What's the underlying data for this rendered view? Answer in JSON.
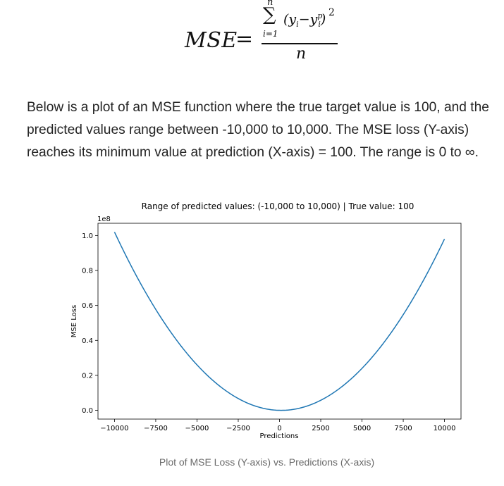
{
  "formula": {
    "lhs": "MSE",
    "equals": "=",
    "sum_upper": "n",
    "sum_symbol": "∑",
    "sum_lower": "i=1",
    "term": "(y",
    "term_sub_i": "i",
    "term_minus": "−y",
    "term_sup_p": "p",
    "term_sub_i2": "i",
    "term_close": ")",
    "square": "2",
    "denominator": "n"
  },
  "paragraph": "Below is a plot of an MSE function where the true target value is 100, and the predicted values range between -10,000 to 10,000. The MSE loss (Y-axis) reaches its minimum value at prediction (X-axis) = 100. The range is 0 to ∞.",
  "caption": "Plot of MSE Loss (Y-axis) vs. Predictions (X-axis)",
  "colors": {
    "line": "#1f77b4",
    "axis": "#000000",
    "text": "#242424",
    "caption": "#6b6b6b"
  },
  "chart_data": {
    "type": "line",
    "title": "Range of predicted values: (-10,000 to 10,000) | True value: 100",
    "xlabel": "Predictions",
    "ylabel": "MSE Loss",
    "y_offset_label": "1e8",
    "true_value": 100,
    "x_range": [
      -10000,
      10000
    ],
    "xlim": [
      -11000,
      11000
    ],
    "ylim": [
      -0.05,
      1.07
    ],
    "y_scale": 100000000,
    "x_ticks": [
      -10000,
      -7500,
      -5000,
      -2500,
      0,
      2500,
      5000,
      7500,
      10000
    ],
    "x_tick_labels": [
      "−10000",
      "−7500",
      "−5000",
      "−2500",
      "0",
      "2500",
      "5000",
      "7500",
      "10000"
    ],
    "y_ticks": [
      0.0,
      0.2,
      0.4,
      0.6,
      0.8,
      1.0
    ],
    "y_tick_labels": [
      "0.0",
      "0.2",
      "0.4",
      "0.6",
      "0.8",
      "1.0"
    ],
    "series": [
      {
        "name": "MSE",
        "x": [
          -10000,
          -8000,
          -6000,
          -4000,
          -2000,
          100,
          2000,
          4000,
          6000,
          8000,
          10000
        ],
        "values": [
          102010000,
          65610000,
          37210000,
          16810000,
          4410000,
          0,
          3610000,
          15210000,
          34810000,
          62410000,
          98010000
        ]
      }
    ],
    "grid": false
  }
}
